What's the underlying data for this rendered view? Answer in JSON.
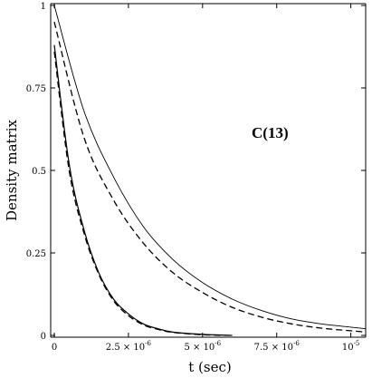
{
  "chart_data": {
    "type": "line",
    "title": "",
    "annotation": "C(13)",
    "xlabel": "t (sec)",
    "ylabel": "Density matrix",
    "xlim": [
      0,
      1.05e-05
    ],
    "ylim": [
      0,
      1
    ],
    "grid": false,
    "legend": "none",
    "x_ticks": [
      {
        "value": 0,
        "mantissa": "0",
        "exponent": ""
      },
      {
        "value": 2.5e-06,
        "mantissa": "2.5 × 10",
        "exponent": "-6"
      },
      {
        "value": 5e-06,
        "mantissa": "5 × 10",
        "exponent": "-6"
      },
      {
        "value": 7.5e-06,
        "mantissa": "7.5 × 10",
        "exponent": "-6"
      },
      {
        "value": 1e-05,
        "mantissa": "10",
        "exponent": "-5"
      }
    ],
    "y_ticks": [
      {
        "value": 0,
        "label": "0"
      },
      {
        "value": 0.25,
        "label": "0.25"
      },
      {
        "value": 0.5,
        "label": "0.5"
      },
      {
        "value": 0.75,
        "label": "0.75"
      },
      {
        "value": 1,
        "label": "1"
      }
    ],
    "series": [
      {
        "style": "solid",
        "x": [
          0,
          1e-06,
          2e-06,
          3e-06,
          4e-06,
          5e-06,
          6e-06,
          7e-06,
          8e-06,
          9e-06,
          1e-05,
          1.05e-05
        ],
        "values": [
          1.0,
          0.68,
          0.48,
          0.33,
          0.23,
          0.16,
          0.11,
          0.075,
          0.05,
          0.035,
          0.025,
          0.02
        ]
      },
      {
        "style": "dashed",
        "x": [
          0,
          1e-06,
          2e-06,
          3e-06,
          4e-06,
          5e-06,
          6e-06,
          7e-06,
          8e-06,
          9e-06,
          1e-05,
          1.05e-05
        ],
        "values": [
          0.95,
          0.6,
          0.41,
          0.28,
          0.19,
          0.13,
          0.085,
          0.055,
          0.035,
          0.022,
          0.014,
          0.01
        ]
      },
      {
        "style": "solid",
        "x": [
          0,
          5e-07,
          1e-06,
          1.5e-06,
          2e-06,
          2.5e-06,
          3e-06,
          3.5e-06,
          4e-06,
          5e-06,
          6e-06
        ],
        "values": [
          0.88,
          0.52,
          0.32,
          0.19,
          0.11,
          0.065,
          0.035,
          0.02,
          0.01,
          0.003,
          0.0
        ]
      },
      {
        "style": "dashed",
        "x": [
          0,
          5e-07,
          1e-06,
          1.5e-06,
          2e-06,
          2.5e-06,
          3e-06,
          3.5e-06,
          4e-06,
          5e-06,
          6e-06
        ],
        "values": [
          0.86,
          0.5,
          0.31,
          0.185,
          0.105,
          0.06,
          0.032,
          0.018,
          0.009,
          0.002,
          0.0
        ]
      }
    ]
  }
}
